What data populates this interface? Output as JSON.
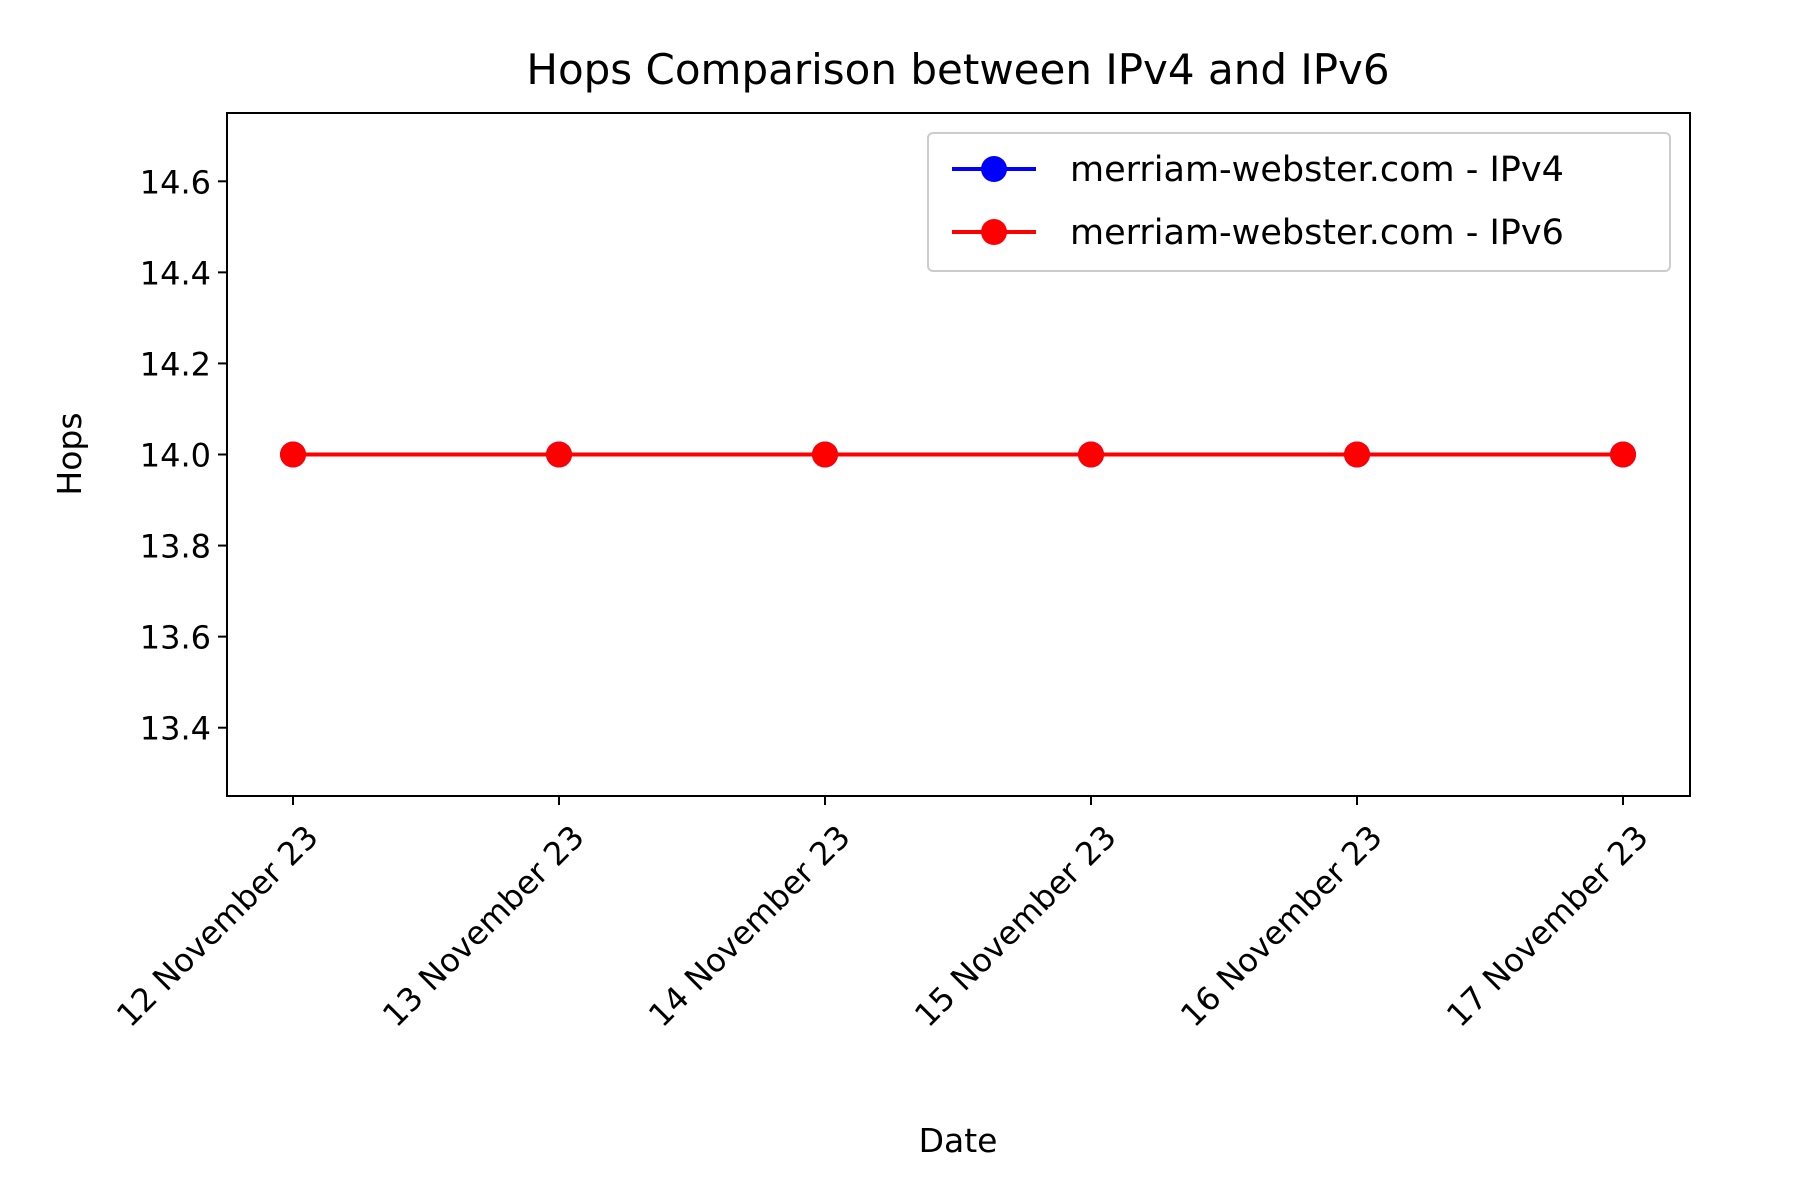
{
  "chart_data": {
    "type": "line",
    "title": "Hops Comparison between IPv4 and IPv6",
    "xlabel": "Date",
    "ylabel": "Hops",
    "categories": [
      "12 November 23",
      "13 November 23",
      "14 November 23",
      "15 November 23",
      "16 November 23",
      "17 November 23"
    ],
    "ylim": [
      13.25,
      14.75
    ],
    "yticks": [
      "13.4",
      "13.6",
      "13.8",
      "14.0",
      "14.2",
      "14.4",
      "14.6"
    ],
    "grid": false,
    "legend_position": "top-right",
    "series": [
      {
        "name": "merriam-webster.com - IPv4",
        "color": "#0000ff",
        "marker": "circle",
        "values": [
          14,
          14,
          14,
          14,
          14,
          14
        ]
      },
      {
        "name": "merriam-webster.com - IPv6",
        "color": "#ff0000",
        "marker": "circle",
        "values": [
          14,
          14,
          14,
          14,
          14,
          14
        ]
      }
    ]
  }
}
